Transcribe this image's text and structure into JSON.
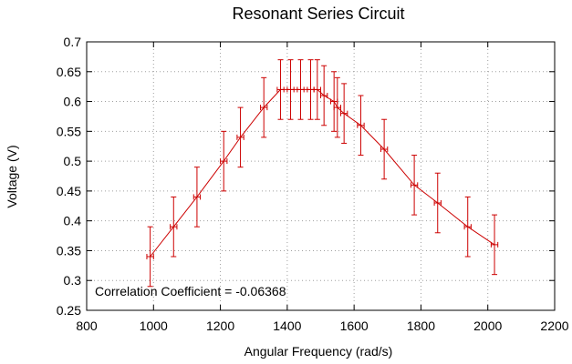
{
  "chart_data": {
    "type": "line",
    "title": "Resonant Series Circuit",
    "xlabel": "Angular Frequency (rad/s)",
    "ylabel": "Voltage (V)",
    "xlim": [
      800,
      2200
    ],
    "ylim": [
      0.25,
      0.7
    ],
    "xticks": [
      800,
      1000,
      1200,
      1400,
      1600,
      1800,
      2000,
      2200
    ],
    "yticks": [
      0.25,
      0.3,
      0.35,
      0.4,
      0.45,
      0.5,
      0.55,
      0.6,
      0.65,
      0.7
    ],
    "grid": true,
    "line_color": "#cc0000",
    "annotation": "Correlation Coefficient = -0.06368",
    "series": [
      {
        "x": [
          990,
          1060,
          1130,
          1210,
          1260,
          1330,
          1380,
          1410,
          1440,
          1470,
          1490,
          1510,
          1540,
          1550,
          1570,
          1620,
          1690,
          1780,
          1850,
          1940,
          2020
        ],
        "y": [
          0.34,
          0.39,
          0.44,
          0.5,
          0.54,
          0.59,
          0.62,
          0.62,
          0.62,
          0.62,
          0.62,
          0.61,
          0.6,
          0.59,
          0.58,
          0.56,
          0.52,
          0.46,
          0.43,
          0.39,
          0.36
        ],
        "yerr": 0.05,
        "xerr": 10
      }
    ]
  }
}
